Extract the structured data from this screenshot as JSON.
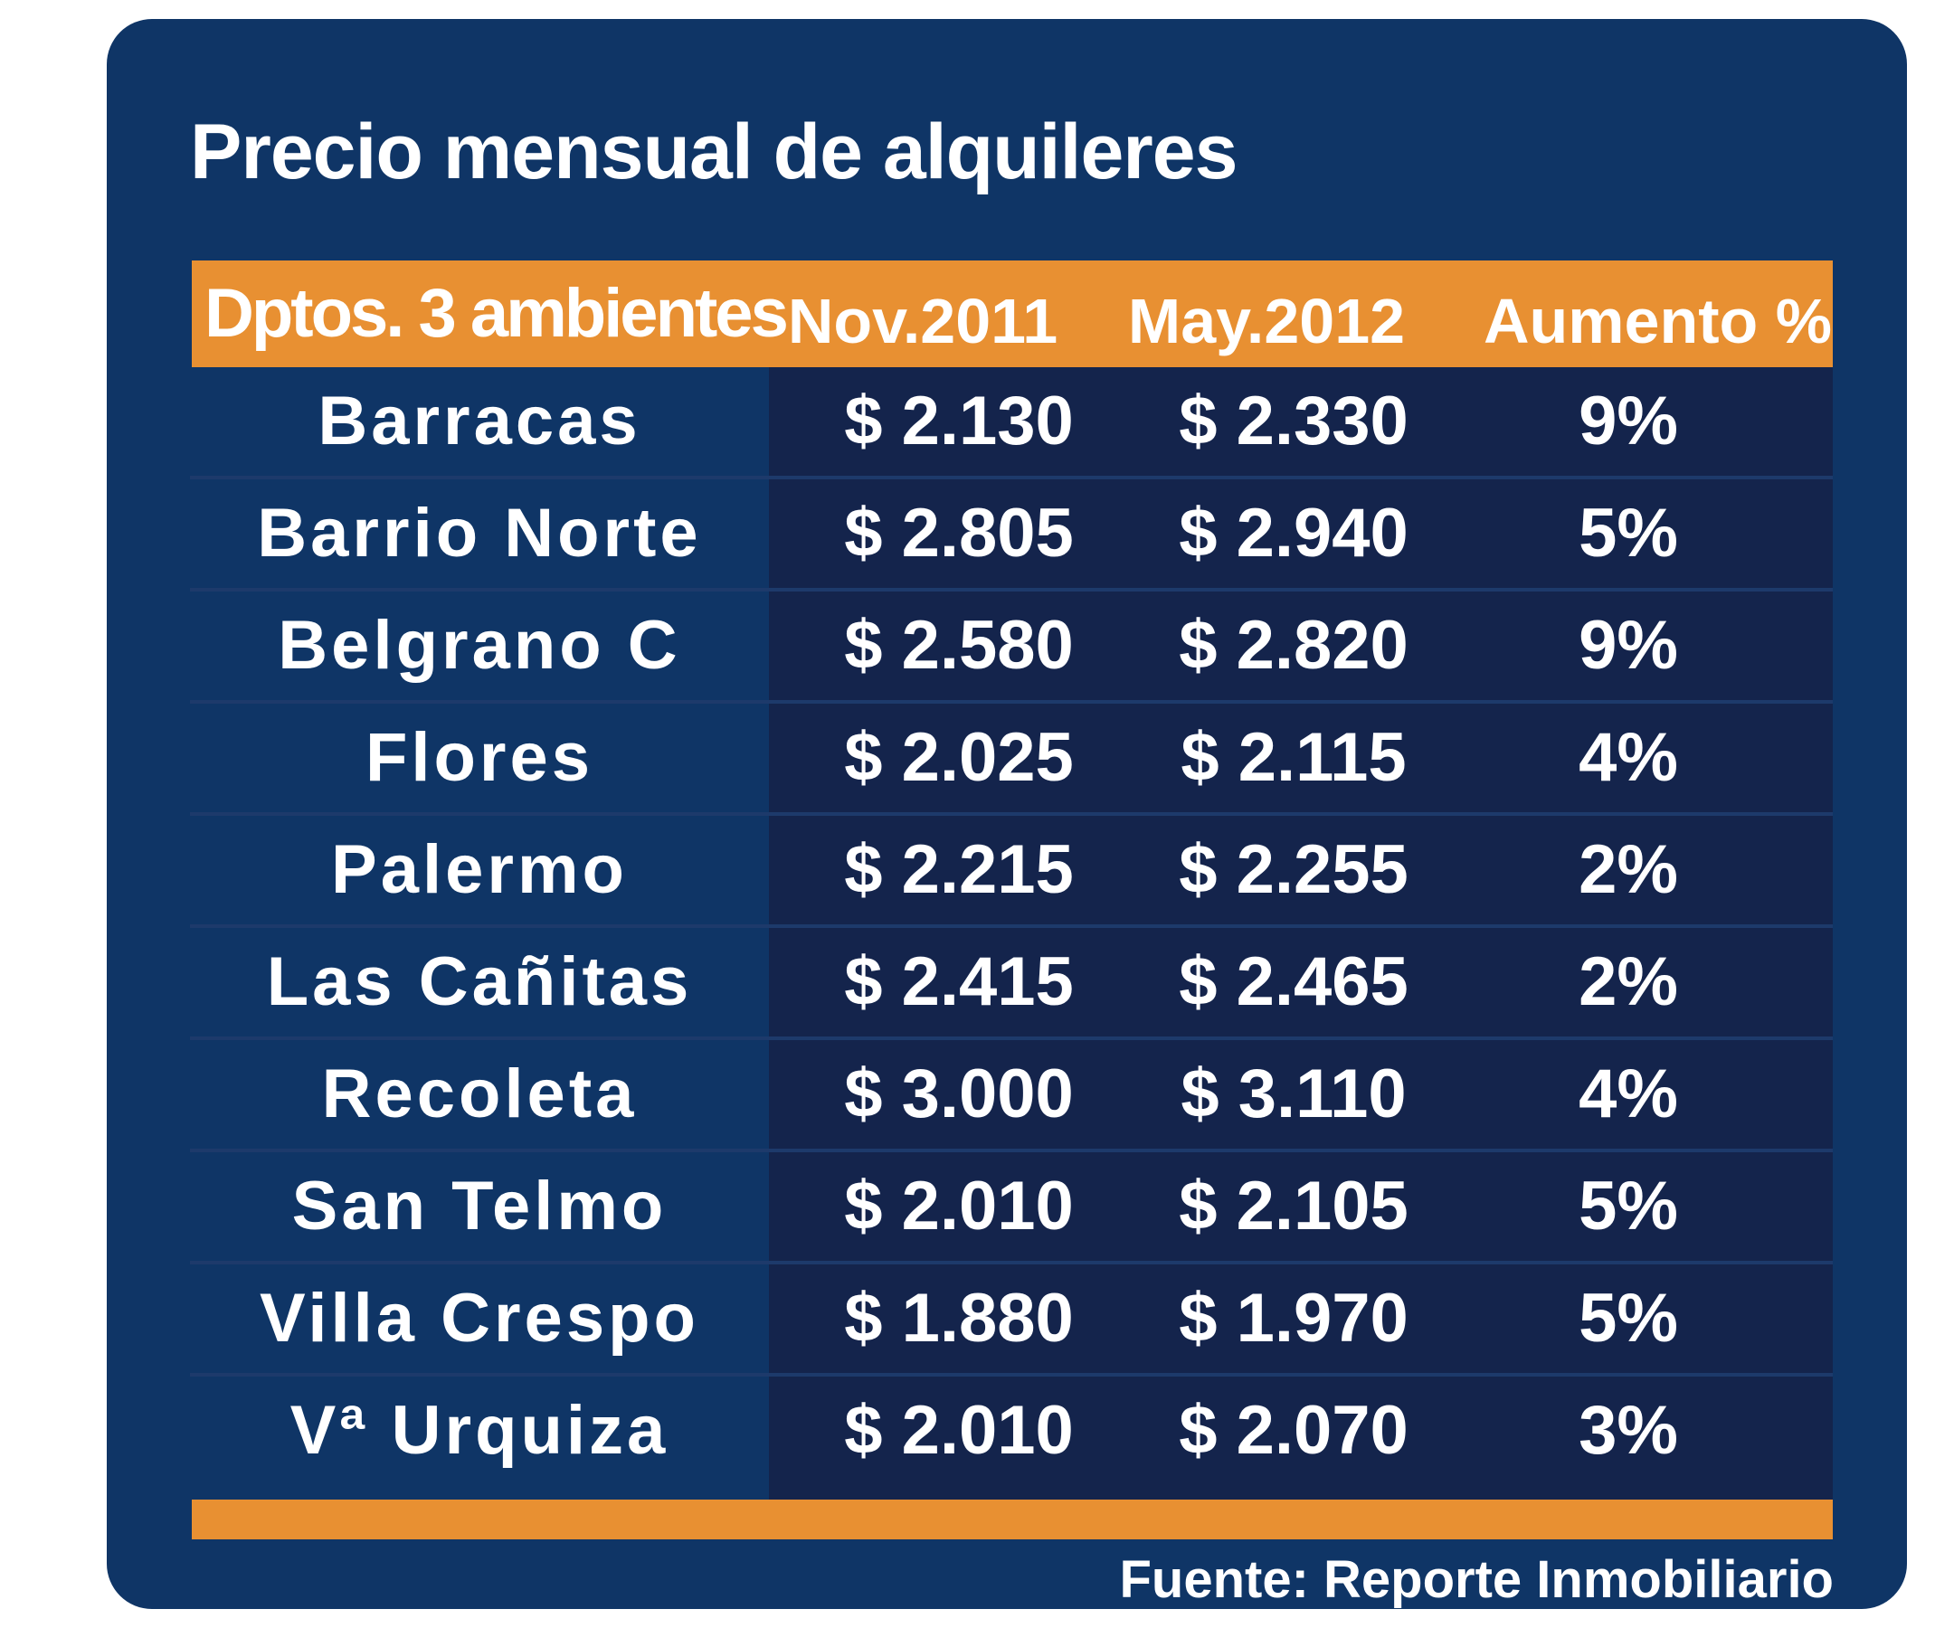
{
  "title": "Precio mensual de alquileres",
  "source": "Fuente: Reporte Inmobiliario",
  "colors": {
    "background": "#0f3566",
    "dark_panel": "#14244c",
    "accent": "#e89032",
    "text": "#ffffff"
  },
  "chart_data": {
    "type": "table",
    "title": "Precio mensual de alquileres",
    "columns": [
      "Dptos. 3 ambientes",
      "Nov.2011",
      "May.2012",
      "Aumento %"
    ],
    "rows": [
      [
        "Barracas",
        "$ 2.130",
        "$ 2.330",
        "9%"
      ],
      [
        "Barrio Norte",
        "$ 2.805",
        "$ 2.940",
        "5%"
      ],
      [
        "Belgrano C",
        "$ 2.580",
        "$ 2.820",
        "9%"
      ],
      [
        "Flores",
        "$ 2.025",
        "$ 2.115",
        "4%"
      ],
      [
        "Palermo",
        "$ 2.215",
        "$ 2.255",
        "2%"
      ],
      [
        "Las Cañitas",
        "$ 2.415",
        "$ 2.465",
        "2%"
      ],
      [
        "Recoleta",
        "$ 3.000",
        "$ 3.110",
        "4%"
      ],
      [
        "San Telmo",
        "$ 2.010",
        "$ 2.105",
        "5%"
      ],
      [
        "Villa Crespo",
        "$ 1.880",
        "$ 1.970",
        "5%"
      ],
      [
        "Vª Urquiza",
        "$ 2.010",
        "$ 2.070",
        "3%"
      ]
    ]
  }
}
